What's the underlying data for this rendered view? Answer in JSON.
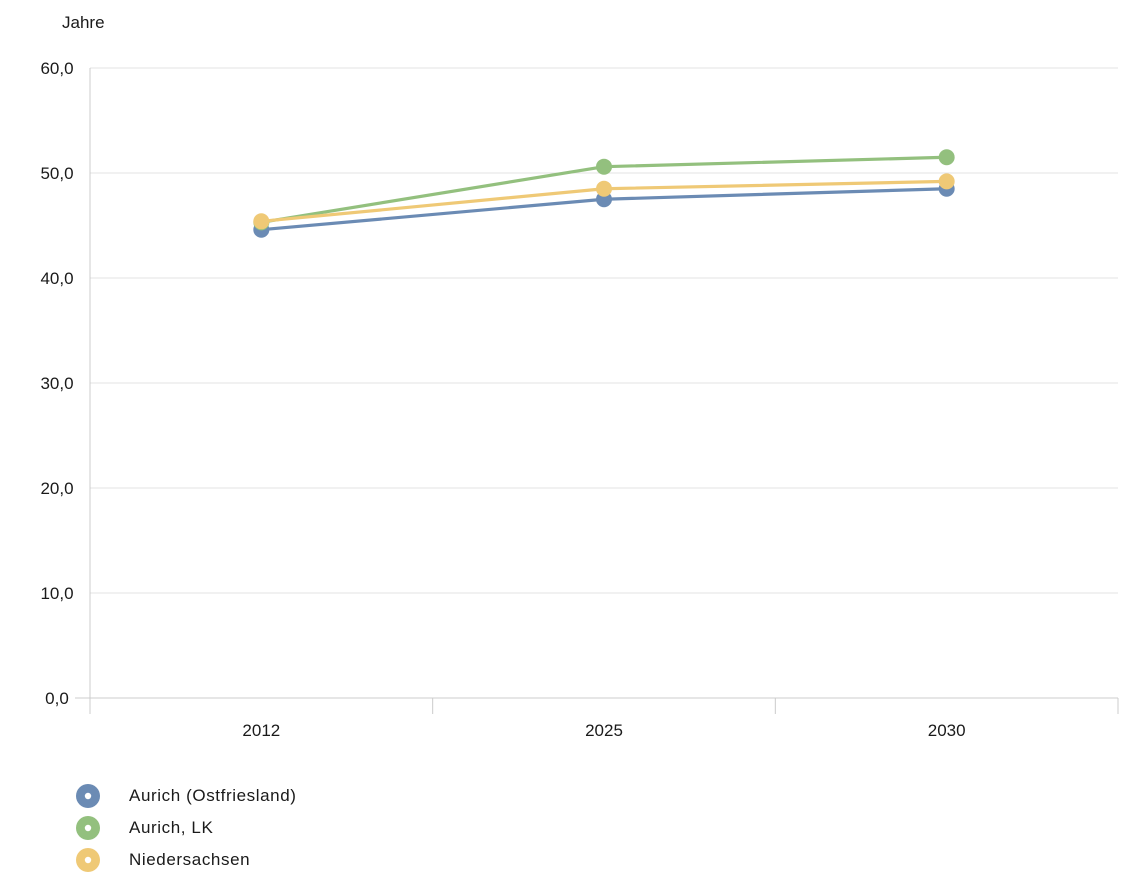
{
  "chart_data": {
    "type": "line",
    "unit_label": "Jahre",
    "categories": [
      "2012",
      "2025",
      "2030"
    ],
    "ylim": [
      0,
      60
    ],
    "yticks": [
      0,
      10,
      20,
      30,
      40,
      50,
      60
    ],
    "ytick_labels": [
      "0,0",
      "10,0",
      "20,0",
      "30,0",
      "40,0",
      "50,0",
      "60,0"
    ],
    "grid": true,
    "legend_position": "bottom-left",
    "series": [
      {
        "name": "Aurich (Ostfriesland)",
        "color": "#6b8bb4",
        "values": [
          44.6,
          47.5,
          48.5
        ]
      },
      {
        "name": "Aurich, LK",
        "color": "#93c07e",
        "values": [
          45.3,
          50.6,
          51.5
        ]
      },
      {
        "name": "Niedersachsen",
        "color": "#efc976",
        "values": [
          45.4,
          48.5,
          49.2
        ]
      }
    ]
  }
}
